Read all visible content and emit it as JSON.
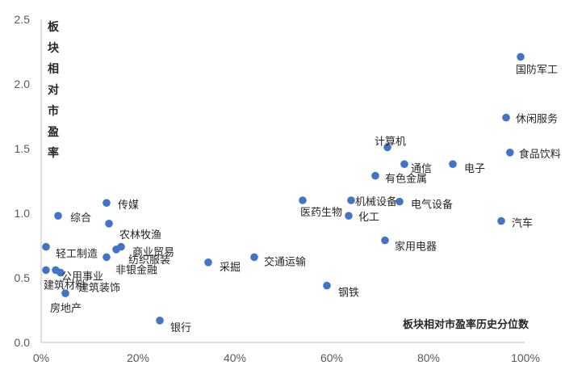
{
  "chart_data": {
    "type": "scatter",
    "xlabel": "板块相对市盈率历史分位数",
    "ylabel": "板块相对市盈率",
    "xlim": [
      0,
      100
    ],
    "ylim": [
      0,
      2.5
    ],
    "x_ticks": [
      "0%",
      "20%",
      "40%",
      "60%",
      "80%",
      "100%"
    ],
    "y_ticks": [
      "0.0",
      "0.5",
      "1.0",
      "1.5",
      "2.0",
      "2.5"
    ],
    "grid": false,
    "points": [
      {
        "label": "国防军工",
        "x": 99.0,
        "y": 2.21
      },
      {
        "label": "休闲服务",
        "x": 96.0,
        "y": 1.74
      },
      {
        "label": "食品饮料",
        "x": 96.8,
        "y": 1.47
      },
      {
        "label": "汽车",
        "x": 95.0,
        "y": 0.94
      },
      {
        "label": "计算机",
        "x": 71.5,
        "y": 1.51
      },
      {
        "label": "通信",
        "x": 75.0,
        "y": 1.38
      },
      {
        "label": "电子",
        "x": 85.0,
        "y": 1.38
      },
      {
        "label": "有色金属",
        "x": 69.0,
        "y": 1.29
      },
      {
        "label": "机械设备",
        "x": 64.0,
        "y": 1.1
      },
      {
        "label": "电气设备",
        "x": 74.0,
        "y": 1.09
      },
      {
        "label": "医药生物",
        "x": 54.0,
        "y": 1.1
      },
      {
        "label": "化工",
        "x": 63.5,
        "y": 0.98
      },
      {
        "label": "家用电器",
        "x": 71.0,
        "y": 0.79
      },
      {
        "label": "钢铁",
        "x": 59.0,
        "y": 0.44
      },
      {
        "label": "交通运输",
        "x": 44.0,
        "y": 0.66
      },
      {
        "label": "采掘",
        "x": 34.5,
        "y": 0.62
      },
      {
        "label": "银行",
        "x": 24.5,
        "y": 0.17
      },
      {
        "label": "传媒",
        "x": 13.5,
        "y": 1.08
      },
      {
        "label": "农林牧渔",
        "x": 14.0,
        "y": 0.92
      },
      {
        "label": "商业贸易",
        "x": 16.5,
        "y": 0.74
      },
      {
        "label": "纺织服装",
        "x": 15.5,
        "y": 0.72
      },
      {
        "label": "非银金融",
        "x": 13.5,
        "y": 0.66
      },
      {
        "label": "综合",
        "x": 3.5,
        "y": 0.98
      },
      {
        "label": "轻工制造",
        "x": 1.0,
        "y": 0.74
      },
      {
        "label": "公用事业",
        "x": 3.0,
        "y": 0.56
      },
      {
        "label": "建筑装饰",
        "x": 4.0,
        "y": 0.54
      },
      {
        "label": "建筑材料",
        "x": 1.0,
        "y": 0.56
      },
      {
        "label": "房地产",
        "x": 5.0,
        "y": 0.38
      }
    ]
  }
}
